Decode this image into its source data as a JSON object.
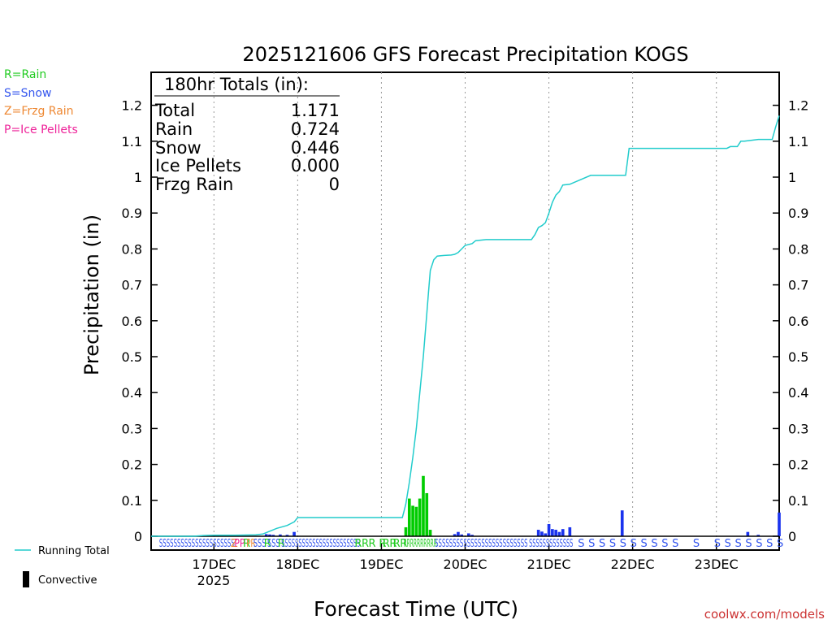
{
  "chart_data": {
    "type": "bar",
    "title": "2025121606 GFS Forecast Precipitation KOGS",
    "xlabel": "Forecast Time (UTC)",
    "ylabel": "Precipitation (in)",
    "ylim": [
      0,
      1.3
    ],
    "yticks": [
      0,
      0.1,
      0.2,
      0.3,
      0.4,
      0.5,
      0.6,
      0.7,
      0.8,
      0.9,
      1,
      1.1,
      1.2
    ],
    "ytick_labels": [
      "0",
      "0.1",
      "0.2",
      "0.3",
      "0.4",
      "0.5",
      "0.6",
      "0.7",
      "0.8",
      "0.9",
      "1",
      "1.1",
      "1.2"
    ],
    "xlim_hours": [
      0,
      180
    ],
    "xticks": [
      {
        "hour": 18,
        "label": "17DEC"
      },
      {
        "hour": 42,
        "label": "18DEC"
      },
      {
        "hour": 66,
        "label": "19DEC"
      },
      {
        "hour": 90,
        "label": "20DEC"
      },
      {
        "hour": 114,
        "label": "21DEC"
      },
      {
        "hour": 138,
        "label": "22DEC"
      },
      {
        "hour": 162,
        "label": "23DEC"
      }
    ],
    "year_label": "2025",
    "legend_types": [
      {
        "text": "R=Rain",
        "color": "#22cc22"
      },
      {
        "text": "S=Snow",
        "color": "#3355ee"
      },
      {
        "text": "Z=Frzg Rain",
        "color": "#ee8833"
      },
      {
        "text": "P=Ice Pellets",
        "color": "#ee2299"
      }
    ],
    "legend_lines": [
      {
        "text": "Running Total",
        "color": "#00cccc"
      },
      {
        "text": "Convective",
        "color": "#000000"
      }
    ],
    "totals": {
      "header": "180hr Totals (in):",
      "rows": [
        {
          "label": "Total",
          "value": "1.171"
        },
        {
          "label": "Rain",
          "value": "0.724"
        },
        {
          "label": "Snow",
          "value": "0.446"
        },
        {
          "label": "Ice Pellets",
          "value": "0.000"
        },
        {
          "label": "Frzg Rain",
          "value": "0"
        }
      ]
    },
    "colors": {
      "rain": "#00cc00",
      "snow": "#1a33ee",
      "running_total": "#22cccc",
      "axis": "#000000",
      "grid": "#999999"
    },
    "running_total": {
      "hours": [
        0,
        12,
        15,
        18,
        24,
        30,
        32,
        36,
        39,
        40,
        41,
        42,
        55,
        60,
        66,
        72,
        72.5,
        73,
        74,
        75,
        76,
        77,
        78,
        79,
        79.5,
        80,
        81,
        82,
        83,
        84,
        86,
        87,
        88,
        89,
        90,
        92,
        93,
        96,
        100,
        104,
        108,
        109,
        110,
        111,
        112,
        113,
        114,
        115,
        116,
        117,
        118,
        120,
        126,
        129,
        135,
        136,
        137,
        138,
        150,
        162,
        165,
        166,
        168,
        169,
        170,
        174,
        177,
        178,
        179,
        180
      ],
      "values": [
        0,
        0,
        0.002,
        0.003,
        0.003,
        0.004,
        0.006,
        0.022,
        0.03,
        0.035,
        0.04,
        0.052,
        0.052,
        0.052,
        0.052,
        0.052,
        0.07,
        0.09,
        0.15,
        0.22,
        0.3,
        0.4,
        0.5,
        0.62,
        0.68,
        0.74,
        0.77,
        0.78,
        0.781,
        0.782,
        0.783,
        0.785,
        0.79,
        0.8,
        0.81,
        0.815,
        0.823,
        0.826,
        0.826,
        0.826,
        0.826,
        0.826,
        0.84,
        0.86,
        0.865,
        0.873,
        0.9,
        0.93,
        0.95,
        0.96,
        0.978,
        0.98,
        1.005,
        1.005,
        1.005,
        1.005,
        1.08,
        1.08,
        1.08,
        1.08,
        1.08,
        1.085,
        1.085,
        1.1,
        1.1,
        1.105,
        1.105,
        1.105,
        1.14,
        1.171
      ]
    },
    "bars": [
      {
        "hour": 33,
        "value": 0.006,
        "type": "snow"
      },
      {
        "hour": 34,
        "value": 0.005,
        "type": "snow"
      },
      {
        "hour": 35,
        "value": 0.004,
        "type": "snow"
      },
      {
        "hour": 37,
        "value": 0.005,
        "type": "snow"
      },
      {
        "hour": 39,
        "value": 0.004,
        "type": "snow"
      },
      {
        "hour": 41,
        "value": 0.012,
        "type": "snow"
      },
      {
        "hour": 73,
        "value": 0.025,
        "type": "rain"
      },
      {
        "hour": 74,
        "value": 0.105,
        "type": "rain"
      },
      {
        "hour": 75,
        "value": 0.085,
        "type": "rain"
      },
      {
        "hour": 76,
        "value": 0.082,
        "type": "rain"
      },
      {
        "hour": 77,
        "value": 0.105,
        "type": "rain"
      },
      {
        "hour": 78,
        "value": 0.168,
        "type": "rain"
      },
      {
        "hour": 79,
        "value": 0.12,
        "type": "rain"
      },
      {
        "hour": 80,
        "value": 0.018,
        "type": "rain"
      },
      {
        "hour": 87,
        "value": 0.006,
        "type": "snow"
      },
      {
        "hour": 88,
        "value": 0.012,
        "type": "snow"
      },
      {
        "hour": 89,
        "value": 0.005,
        "type": "snow"
      },
      {
        "hour": 91,
        "value": 0.008,
        "type": "snow"
      },
      {
        "hour": 92,
        "value": 0.004,
        "type": "snow"
      },
      {
        "hour": 111,
        "value": 0.018,
        "type": "snow"
      },
      {
        "hour": 112,
        "value": 0.013,
        "type": "snow"
      },
      {
        "hour": 113,
        "value": 0.008,
        "type": "snow"
      },
      {
        "hour": 114,
        "value": 0.034,
        "type": "snow"
      },
      {
        "hour": 115,
        "value": 0.02,
        "type": "snow"
      },
      {
        "hour": 116,
        "value": 0.018,
        "type": "snow"
      },
      {
        "hour": 117,
        "value": 0.012,
        "type": "snow"
      },
      {
        "hour": 118,
        "value": 0.02,
        "type": "snow"
      },
      {
        "hour": 120,
        "value": 0.025,
        "type": "snow"
      },
      {
        "hour": 135,
        "value": 0.072,
        "type": "snow"
      },
      {
        "hour": 171,
        "value": 0.012,
        "type": "snow"
      },
      {
        "hour": 174,
        "value": 0.004,
        "type": "snow"
      },
      {
        "hour": 180,
        "value": 0.066,
        "type": "snow"
      }
    ],
    "type_markers": [
      {
        "text": "SSSSSSSSSSSSSSSSSSSSS",
        "hour_start": 3,
        "hour_end": 23,
        "type": "snow"
      },
      {
        "text": "Z",
        "hour_start": 23.5,
        "hour_end": 23.5,
        "type": "frzg"
      },
      {
        "text": "PP",
        "hour_start": 24.5,
        "hour_end": 26,
        "type": "ice"
      },
      {
        "text": "R",
        "hour_start": 27,
        "hour_end": 27,
        "type": "rain"
      },
      {
        "text": "PR",
        "hour_start": 28,
        "hour_end": 29,
        "type": "mixed"
      },
      {
        "text": "SSS",
        "hour_start": 30,
        "hour_end": 32,
        "type": "snow"
      },
      {
        "text": "R",
        "hour_start": 33,
        "hour_end": 33,
        "type": "rain"
      },
      {
        "text": "SSS",
        "hour_start": 34,
        "hour_end": 36,
        "type": "snow"
      },
      {
        "text": "R",
        "hour_start": 37,
        "hour_end": 37,
        "type": "rain"
      },
      {
        "text": "SSSSSSSSSSSSSSSSSSSSSSS",
        "hour_start": 38,
        "hour_end": 59,
        "type": "snow"
      },
      {
        "text": "R",
        "hour_start": 59,
        "hour_end": 59,
        "type": "rain"
      },
      {
        "text": "R",
        "hour_start": 61,
        "hour_end": 61,
        "type": "rain"
      },
      {
        "text": "R",
        "hour_start": 63,
        "hour_end": 63,
        "type": "rain"
      },
      {
        "text": "R",
        "hour_start": 66,
        "hour_end": 66,
        "type": "rain"
      },
      {
        "text": "R",
        "hour_start": 67,
        "hour_end": 67,
        "type": "rain"
      },
      {
        "text": "R",
        "hour_start": 69,
        "hour_end": 69,
        "type": "rain"
      },
      {
        "text": "R",
        "hour_start": 70,
        "hour_end": 70,
        "type": "rain"
      },
      {
        "text": "R",
        "hour_start": 72,
        "hour_end": 72,
        "type": "rain"
      },
      {
        "text": "RRRRRRRRRR",
        "hour_start": 73,
        "hour_end": 81,
        "type": "rain"
      },
      {
        "text": "SSSSSSSSSSSSSSSSSSSSSSSSSS",
        "hour_start": 82,
        "hour_end": 107,
        "type": "snow"
      },
      {
        "text": "SSSSSSSSSSSSS",
        "hour_start": 109,
        "hour_end": 120,
        "type": "snow"
      },
      {
        "text": "S",
        "hour_start": 123,
        "hour_end": 123,
        "type": "snow"
      },
      {
        "text": "S",
        "hour_start": 126,
        "hour_end": 126,
        "type": "snow"
      },
      {
        "text": "S",
        "hour_start": 129,
        "hour_end": 129,
        "type": "snow"
      },
      {
        "text": "S",
        "hour_start": 132,
        "hour_end": 132,
        "type": "snow"
      },
      {
        "text": "S",
        "hour_start": 135,
        "hour_end": 135,
        "type": "snow"
      },
      {
        "text": "S",
        "hour_start": 138,
        "hour_end": 138,
        "type": "snow"
      },
      {
        "text": "S",
        "hour_start": 141,
        "hour_end": 141,
        "type": "snow"
      },
      {
        "text": "S",
        "hour_start": 144,
        "hour_end": 144,
        "type": "snow"
      },
      {
        "text": "S",
        "hour_start": 147,
        "hour_end": 147,
        "type": "snow"
      },
      {
        "text": "S",
        "hour_start": 150,
        "hour_end": 150,
        "type": "snow"
      },
      {
        "text": "S",
        "hour_start": 156,
        "hour_end": 156,
        "type": "snow"
      },
      {
        "text": "S",
        "hour_start": 162,
        "hour_end": 162,
        "type": "snow"
      },
      {
        "text": "S",
        "hour_start": 165,
        "hour_end": 165,
        "type": "snow"
      },
      {
        "text": "S",
        "hour_start": 168,
        "hour_end": 168,
        "type": "snow"
      },
      {
        "text": "S",
        "hour_start": 171,
        "hour_end": 171,
        "type": "snow"
      },
      {
        "text": "S",
        "hour_start": 174,
        "hour_end": 174,
        "type": "snow"
      },
      {
        "text": "S",
        "hour_start": 177,
        "hour_end": 177,
        "type": "snow"
      },
      {
        "text": "S",
        "hour_start": 180,
        "hour_end": 180,
        "type": "snow"
      }
    ],
    "marker_colors": {
      "snow": "#3355ee",
      "rain": "#22cc22",
      "frzg": "#ee8833",
      "ice": "#ee2299",
      "mixed": "#ee8833"
    },
    "credit": "coolwx.com/models",
    "credit_color": "#cc3333"
  }
}
